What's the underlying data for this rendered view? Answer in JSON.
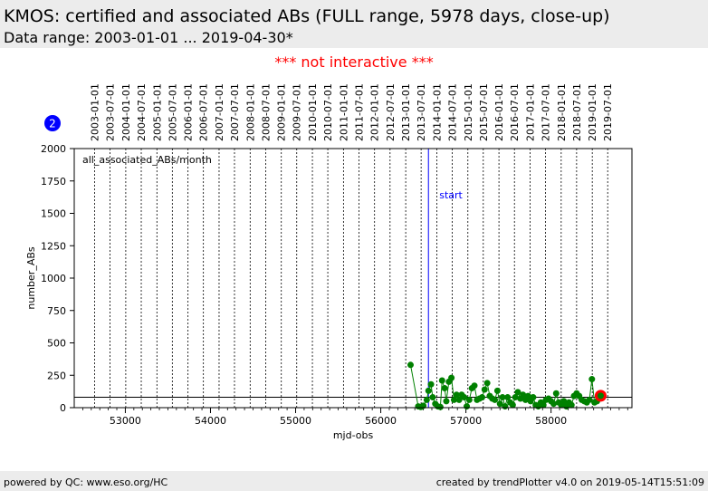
{
  "header": {
    "title": "KMOS: certified and associated ABs (FULL range, 5978 days, close-up)",
    "subtitle": "Data range: 2003-01-01 ... 2019-04-30*"
  },
  "notice": "*** not interactive ***",
  "footer": {
    "left": "powered by QC: www.eso.org/HC",
    "right": "created by trendPlotter v4.0 on 2019-05-14T15:51:09"
  },
  "colors": {
    "series": "#008000",
    "marker_start": "#0000ff",
    "last_point": "#ff0000",
    "notice": "#ff0000",
    "badge": "#0000ff"
  },
  "chart_data": {
    "type": "line",
    "xlabel": "mjd-obs",
    "ylabel": "number_ABs",
    "xlim": [
      52400,
      58950
    ],
    "ylim": [
      0,
      2000
    ],
    "x_ticks": [
      53000,
      54000,
      55000,
      56000,
      57000,
      58000
    ],
    "y_ticks": [
      0,
      250,
      500,
      750,
      1000,
      1250,
      1500,
      1750,
      2000
    ],
    "legend": "all_associated_ABs/month",
    "badge": "2",
    "date_ticks": [
      {
        "label": "2003-01-01",
        "mjd": 52640
      },
      {
        "label": "2003-07-01",
        "mjd": 52821
      },
      {
        "label": "2004-01-01",
        "mjd": 53005
      },
      {
        "label": "2004-07-01",
        "mjd": 53187
      },
      {
        "label": "2005-01-01",
        "mjd": 53371
      },
      {
        "label": "2005-07-01",
        "mjd": 53552
      },
      {
        "label": "2006-01-01",
        "mjd": 53736
      },
      {
        "label": "2006-07-01",
        "mjd": 53917
      },
      {
        "label": "2007-01-01",
        "mjd": 54101
      },
      {
        "label": "2007-07-01",
        "mjd": 54282
      },
      {
        "label": "2008-01-01",
        "mjd": 54466
      },
      {
        "label": "2008-07-01",
        "mjd": 54648
      },
      {
        "label": "2009-01-01",
        "mjd": 54832
      },
      {
        "label": "2009-07-01",
        "mjd": 55013
      },
      {
        "label": "2010-01-01",
        "mjd": 55197
      },
      {
        "label": "2010-07-01",
        "mjd": 55378
      },
      {
        "label": "2011-01-01",
        "mjd": 55562
      },
      {
        "label": "2011-07-01",
        "mjd": 55743
      },
      {
        "label": "2012-01-01",
        "mjd": 55927
      },
      {
        "label": "2012-07-01",
        "mjd": 56109
      },
      {
        "label": "2013-01-01",
        "mjd": 56293
      },
      {
        "label": "2013-07-01",
        "mjd": 56474
      },
      {
        "label": "2014-01-01",
        "mjd": 56658
      },
      {
        "label": "2014-07-01",
        "mjd": 56839
      },
      {
        "label": "2015-01-01",
        "mjd": 57023
      },
      {
        "label": "2015-07-01",
        "mjd": 57204
      },
      {
        "label": "2016-01-01",
        "mjd": 57388
      },
      {
        "label": "2016-07-01",
        "mjd": 57570
      },
      {
        "label": "2017-01-01",
        "mjd": 57754
      },
      {
        "label": "2017-07-01",
        "mjd": 57935
      },
      {
        "label": "2018-01-01",
        "mjd": 58119
      },
      {
        "label": "2018-07-01",
        "mjd": 58300
      },
      {
        "label": "2019-01-01",
        "mjd": 58484
      },
      {
        "label": "2019-07-01",
        "mjd": 58665
      }
    ],
    "start_marker": {
      "label": "start",
      "x": 56560
    },
    "reference_line_y": 80,
    "series": [
      {
        "points": [
          {
            "x": 56350,
            "y": 330
          },
          {
            "x": 56440,
            "y": 10
          },
          {
            "x": 56470,
            "y": 5
          },
          {
            "x": 56500,
            "y": 15
          },
          {
            "x": 56540,
            "y": 60
          },
          {
            "x": 56560,
            "y": 130
          },
          {
            "x": 56590,
            "y": 180
          },
          {
            "x": 56610,
            "y": 80
          },
          {
            "x": 56640,
            "y": 30
          },
          {
            "x": 56670,
            "y": 10
          },
          {
            "x": 56700,
            "y": 5
          },
          {
            "x": 56720,
            "y": 210
          },
          {
            "x": 56750,
            "y": 150
          },
          {
            "x": 56770,
            "y": 50
          },
          {
            "x": 56800,
            "y": 200
          },
          {
            "x": 56830,
            "y": 230
          },
          {
            "x": 56860,
            "y": 60
          },
          {
            "x": 56890,
            "y": 100
          },
          {
            "x": 56920,
            "y": 60
          },
          {
            "x": 56950,
            "y": 100
          },
          {
            "x": 56980,
            "y": 80
          },
          {
            "x": 57010,
            "y": 10
          },
          {
            "x": 57040,
            "y": 60
          },
          {
            "x": 57070,
            "y": 150
          },
          {
            "x": 57100,
            "y": 170
          },
          {
            "x": 57130,
            "y": 60
          },
          {
            "x": 57160,
            "y": 70
          },
          {
            "x": 57190,
            "y": 80
          },
          {
            "x": 57220,
            "y": 140
          },
          {
            "x": 57250,
            "y": 190
          },
          {
            "x": 57280,
            "y": 90
          },
          {
            "x": 57310,
            "y": 70
          },
          {
            "x": 57340,
            "y": 60
          },
          {
            "x": 57370,
            "y": 130
          },
          {
            "x": 57400,
            "y": 30
          },
          {
            "x": 57430,
            "y": 80
          },
          {
            "x": 57460,
            "y": 10
          },
          {
            "x": 57490,
            "y": 80
          },
          {
            "x": 57520,
            "y": 40
          },
          {
            "x": 57550,
            "y": 20
          },
          {
            "x": 57580,
            "y": 80
          },
          {
            "x": 57610,
            "y": 120
          },
          {
            "x": 57640,
            "y": 70
          },
          {
            "x": 57670,
            "y": 100
          },
          {
            "x": 57700,
            "y": 60
          },
          {
            "x": 57730,
            "y": 90
          },
          {
            "x": 57760,
            "y": 50
          },
          {
            "x": 57790,
            "y": 80
          },
          {
            "x": 57820,
            "y": 20
          },
          {
            "x": 57850,
            "y": 10
          },
          {
            "x": 57880,
            "y": 40
          },
          {
            "x": 57910,
            "y": 20
          },
          {
            "x": 57940,
            "y": 60
          },
          {
            "x": 57970,
            "y": 70
          },
          {
            "x": 58000,
            "y": 50
          },
          {
            "x": 58030,
            "y": 30
          },
          {
            "x": 58060,
            "y": 110
          },
          {
            "x": 58090,
            "y": 40
          },
          {
            "x": 58120,
            "y": 20
          },
          {
            "x": 58150,
            "y": 50
          },
          {
            "x": 58180,
            "y": 10
          },
          {
            "x": 58210,
            "y": 40
          },
          {
            "x": 58240,
            "y": 20
          },
          {
            "x": 58270,
            "y": 90
          },
          {
            "x": 58300,
            "y": 110
          },
          {
            "x": 58330,
            "y": 90
          },
          {
            "x": 58360,
            "y": 60
          },
          {
            "x": 58390,
            "y": 50
          },
          {
            "x": 58420,
            "y": 40
          },
          {
            "x": 58450,
            "y": 60
          },
          {
            "x": 58480,
            "y": 220
          },
          {
            "x": 58510,
            "y": 40
          },
          {
            "x": 58540,
            "y": 50
          }
        ]
      }
    ]
  }
}
